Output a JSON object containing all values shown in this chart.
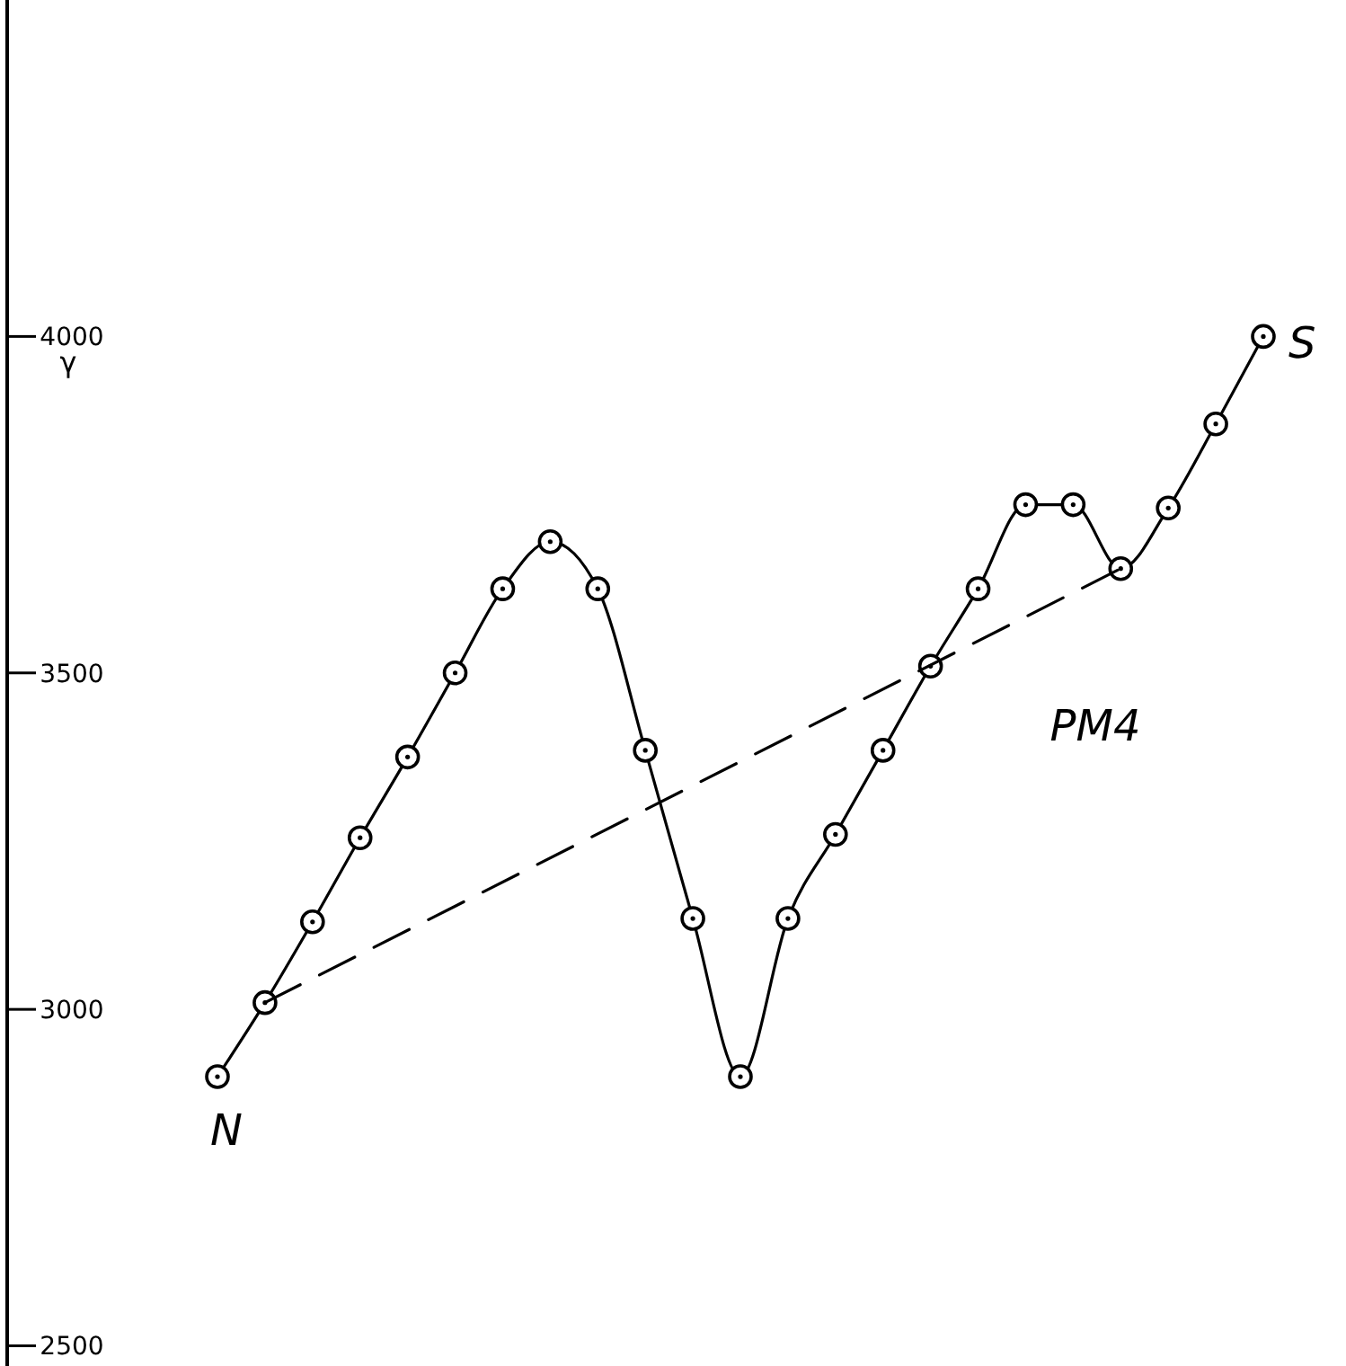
{
  "chart_data": {
    "type": "line",
    "ylabel": "γ",
    "categories": [
      null,
      null,
      null,
      null,
      null,
      null,
      null,
      null,
      null,
      null,
      null,
      null,
      null,
      null,
      null,
      null,
      null,
      null,
      null,
      null,
      null,
      null,
      null
    ],
    "series": [
      {
        "color": "#000000",
        "marker": "circle",
        "line_style": "solid",
        "values": [
          2900,
          3010,
          3130,
          3255,
          3375,
          3500,
          3625,
          3695,
          3625,
          3385,
          3135,
          2900,
          3135,
          3260,
          3385,
          3510,
          3625,
          3750,
          3750,
          3655,
          3745,
          3870,
          4000
        ]
      },
      {
        "color": "#000000",
        "line_style": "dashed",
        "values": [
          null,
          3010,
          null,
          null,
          null,
          null,
          null,
          null,
          null,
          null,
          null,
          null,
          null,
          null,
          null,
          null,
          null,
          null,
          null,
          3655,
          null,
          null,
          null
        ]
      }
    ],
    "ylim": [
      2470,
      4500
    ],
    "yticks": [
      2500,
      3000,
      3500,
      4000
    ],
    "tick_labels": "y",
    "annotations": [
      "N",
      "S",
      "PM4"
    ]
  }
}
